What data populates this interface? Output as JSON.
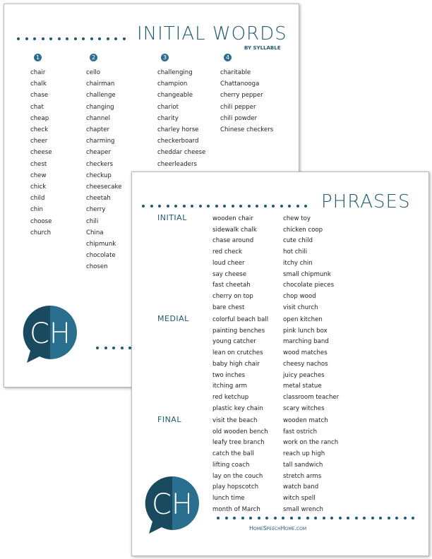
{
  "back_page": {
    "title": "INITIAL WORDS",
    "subtitle": "BY SYLLABLE",
    "logo": "CH",
    "columns": [
      {
        "number": "1",
        "words": [
          "chair",
          "chalk",
          "chase",
          "chat",
          "cheap",
          "check",
          "cheer",
          "cheese",
          "chest",
          "chew",
          "chick",
          "child",
          "chin",
          "choose",
          "church"
        ]
      },
      {
        "number": "2",
        "words": [
          "cello",
          "chairman",
          "challenge",
          "changing",
          "channel",
          "chapter",
          "charming",
          "cheaper",
          "checkers",
          "checkup",
          "cheesecake",
          "cheetah",
          "cherry",
          "chili",
          "China",
          "chipmunk",
          "chocolate",
          "chosen"
        ]
      },
      {
        "number": "3",
        "words": [
          "challenging",
          "champion",
          "changeable",
          "chariot",
          "charity",
          "charley horse",
          "checkerboard",
          "cheddar cheese",
          "cheerleaders"
        ]
      },
      {
        "number": "4",
        "words": [
          "charitable",
          "Chattanooga",
          "cherry pepper",
          "chili pepper",
          "chili powder",
          "Chinese checkers"
        ]
      }
    ]
  },
  "front_page": {
    "title": "PHRASES",
    "logo": "CH",
    "footer": "HomeSpeechHome.com",
    "sections": [
      {
        "label": "INITIAL",
        "left": [
          "wooden chair",
          "sidewalk chalk",
          "chase around",
          "red check",
          "loud cheer",
          "say cheese",
          "fast cheetah",
          "cherry on top",
          "bare chest"
        ],
        "right": [
          "chew toy",
          "chicken coop",
          "cute child",
          "hot chili",
          "itchy chin",
          "small chipmunk",
          "chocolate pieces",
          "chop wood",
          "visit church"
        ]
      },
      {
        "label": "MEDIAL",
        "left": [
          "colorful beach ball",
          "painting benches",
          "young catcher",
          "lean on crutches",
          "baby high chair",
          "two inches",
          "itching arm",
          "red ketchup",
          "plastic key chain"
        ],
        "right": [
          "open kitchen",
          "pink lunch box",
          "marching band",
          "wood matches",
          "cheesy nachos",
          "juicy peaches",
          "metal statue",
          "classroom teacher",
          "scary witches"
        ]
      },
      {
        "label": "FINAL",
        "left": [
          "visit the beach",
          "old wooden bench",
          "leafy tree branch",
          "catch the ball",
          "lifting coach",
          "lay on the couch",
          "play hopscotch",
          "lunch time",
          "month of March"
        ],
        "right": [
          "wooden match",
          "fast ostrich",
          "work on the ranch",
          "reach up high",
          "tall sandwich",
          "stretch arms",
          "watch band",
          "witch spell",
          "small wrench"
        ]
      }
    ]
  }
}
